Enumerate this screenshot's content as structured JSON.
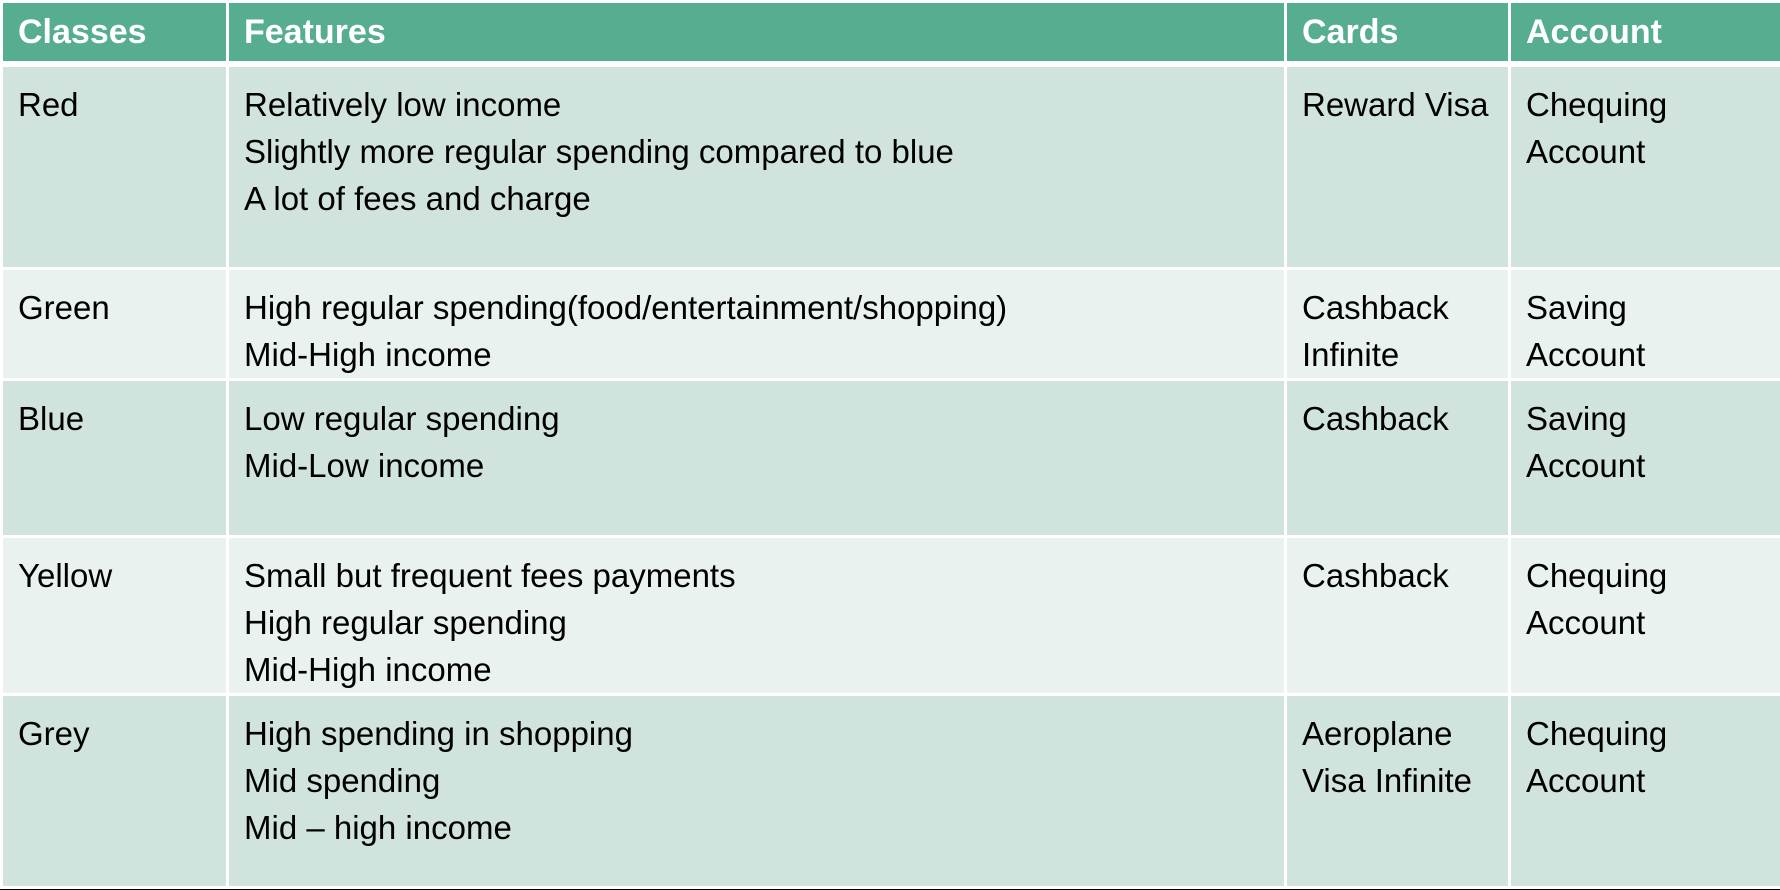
{
  "table": {
    "headers": [
      "Classes",
      "Features",
      "Cards",
      "Account"
    ],
    "rows": [
      {
        "class": "Red",
        "features": [
          "Relatively low income",
          "Slightly more regular spending compared to blue",
          "A lot of fees and charge"
        ],
        "cards": [
          "Reward Visa"
        ],
        "account": [
          "Chequing",
          "Account"
        ]
      },
      {
        "class": "Green",
        "features": [
          "High regular spending(food/entertainment/shopping)",
          "Mid-High income"
        ],
        "cards": [
          "Cashback",
          "Infinite"
        ],
        "account": [
          "Saving",
          "Account"
        ]
      },
      {
        "class": "Blue",
        "features": [
          "Low regular spending",
          "Mid-Low income"
        ],
        "cards": [
          "Cashback"
        ],
        "account": [
          "Saving",
          "Account"
        ]
      },
      {
        "class": "Yellow",
        "features": [
          "Small but frequent fees payments",
          "High regular spending",
          "Mid-High income"
        ],
        "cards": [
          "Cashback"
        ],
        "account": [
          "Chequing",
          "Account"
        ]
      },
      {
        "class": "Grey",
        "features": [
          "High spending in shopping",
          "Mid spending",
          "Mid – high income"
        ],
        "cards": [
          "Aeroplane",
          "Visa Infinite"
        ],
        "account": [
          "Chequing",
          "Account"
        ]
      }
    ]
  },
  "colors": {
    "header": "#56ad90",
    "row_dark": "#d0e3dc",
    "row_light": "#e9f2ee"
  }
}
